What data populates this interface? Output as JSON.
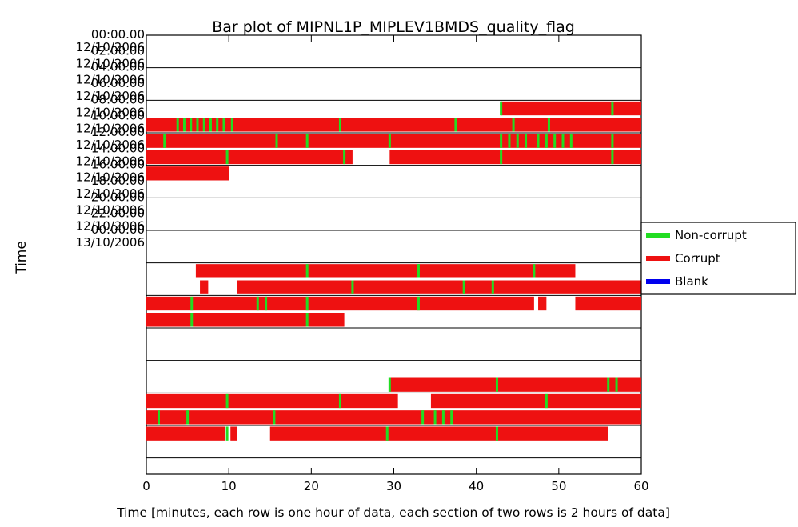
{
  "chart_data": {
    "type": "bar",
    "title": "Bar plot of MIPNL1P_MIPLEV1BMDS_quality_flag",
    "ylabel": "Time",
    "xlabel": "Time [minutes, each row is one hour of data, each section of two rows is 2 hours of data]",
    "xlim": [
      0,
      60
    ],
    "xticks": [
      "0",
      "10",
      "20",
      "30",
      "40",
      "50",
      "60"
    ],
    "sections": [
      {
        "time": "00:00.00",
        "date": "12/10/2006"
      },
      {
        "time": "02:00.00",
        "date": "12/10/2006"
      },
      {
        "time": "04:00.00",
        "date": "12/10/2006"
      },
      {
        "time": "06:00.00",
        "date": "12/10/2006"
      },
      {
        "time": "08:00.00",
        "date": "12/10/2006"
      },
      {
        "time": "10:00.00",
        "date": "12/10/2006"
      },
      {
        "time": "12:00.00",
        "date": "12/10/2006"
      },
      {
        "time": "14:00.00",
        "date": "12/10/2006"
      },
      {
        "time": "16:00.00",
        "date": "12/10/2006"
      },
      {
        "time": "18:00.00",
        "date": "12/10/2006"
      },
      {
        "time": "20:00.00",
        "date": "12/10/2006"
      },
      {
        "time": "22:00.00",
        "date": "12/10/2006"
      },
      {
        "time": "00:00.00",
        "date": "13/10/2006"
      }
    ],
    "legend": {
      "placement": "right",
      "entries": [
        {
          "name": "Non-corrupt",
          "color": "#22dd22"
        },
        {
          "name": "Corrupt",
          "color": "#ee1111"
        },
        {
          "name": "Blank",
          "color": "#0000ee"
        }
      ]
    },
    "colors": {
      "corrupt": "#ee1111",
      "noncorrupt": "#22dd22",
      "blank": "#0000ee"
    },
    "rows": [
      [],
      [],
      [],
      [],
      [
        [
          43,
          60
        ]
      ],
      [
        [
          0,
          60
        ]
      ],
      [
        [
          0,
          60
        ]
      ],
      [
        [
          0,
          25
        ],
        [
          29.5,
          60
        ]
      ],
      [
        [
          0,
          10
        ]
      ],
      [],
      [],
      [],
      [],
      [],
      [
        [
          6,
          52
        ]
      ],
      [
        [
          6.5,
          7.5
        ],
        [
          11,
          60
        ]
      ],
      [
        [
          0,
          47
        ],
        [
          47.5,
          48.5
        ],
        [
          52,
          60
        ]
      ],
      [
        [
          0,
          24
        ]
      ],
      [],
      [],
      [],
      [
        [
          29.5,
          60
        ]
      ],
      [
        [
          0,
          30.5
        ],
        [
          34.5,
          60
        ]
      ],
      [
        [
          0,
          60
        ]
      ],
      [
        [
          0,
          9.5
        ],
        [
          10.2,
          11
        ],
        [
          15,
          56
        ]
      ],
      [],
      []
    ],
    "noncorrupt_marks": [
      [],
      [],
      [],
      [],
      [
        43,
        56.5
      ],
      [
        3.8,
        4.6,
        5.4,
        6.2,
        7,
        7.8,
        8.6,
        9.4,
        10.4,
        23.5,
        37.5,
        44.5,
        48.8
      ],
      [
        2.2,
        15.8,
        19.5,
        29.5,
        43,
        44,
        45,
        46,
        47.5,
        48.5,
        49.5,
        50.5,
        51.5,
        56.5
      ],
      [
        9.8,
        24,
        43,
        56.5
      ],
      [],
      [],
      [],
      [],
      [],
      [],
      [
        19.5,
        33,
        47
      ],
      [
        25,
        38.5,
        42
      ],
      [
        5.5,
        13.5,
        14.5,
        19.5,
        33
      ],
      [
        5.5,
        19.5
      ],
      [],
      [],
      [],
      [
        29.5,
        42.5,
        56,
        57
      ],
      [
        9.8,
        23.5,
        48.5
      ],
      [
        1.5,
        5,
        15.5,
        33.5,
        35,
        36,
        37
      ],
      [
        9.8,
        29.2,
        42.5
      ],
      [],
      []
    ]
  }
}
